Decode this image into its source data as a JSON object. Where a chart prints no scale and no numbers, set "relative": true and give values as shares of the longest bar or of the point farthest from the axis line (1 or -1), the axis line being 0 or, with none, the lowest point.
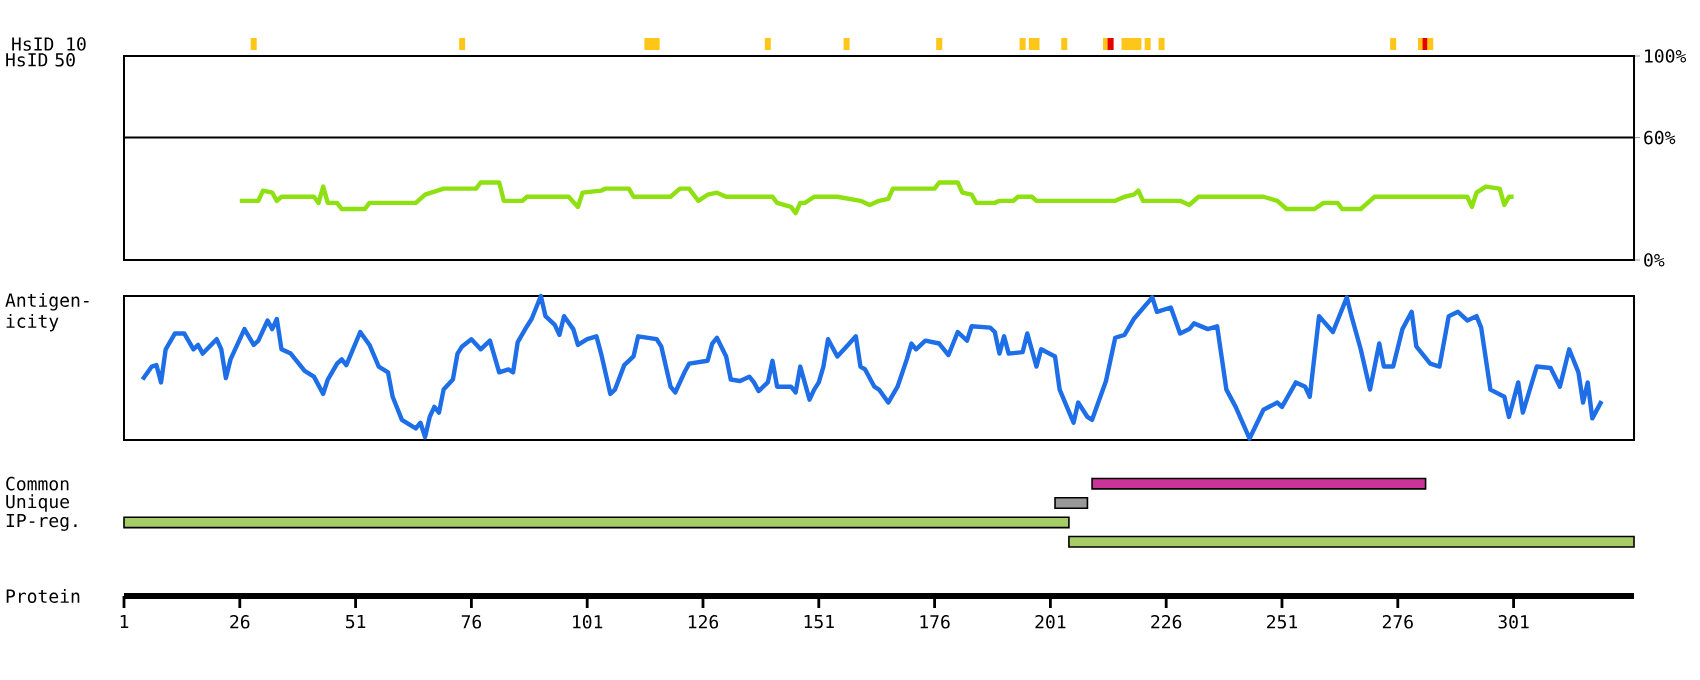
{
  "chart_data": [
    {
      "type": "bar",
      "ylabel": "HsID 10",
      "relative": true,
      "tick_labels": false,
      "xlim": [
        1,
        327
      ],
      "x": [
        29,
        74,
        114,
        115,
        116,
        140,
        157,
        177,
        195,
        197,
        198,
        204,
        213,
        214,
        217,
        218,
        219,
        220,
        222,
        225,
        275,
        281,
        282,
        283
      ],
      "values": [
        1,
        1,
        1,
        1,
        1,
        1,
        1,
        1,
        1,
        1,
        1,
        1,
        1,
        1,
        1,
        1,
        1,
        1,
        1,
        1,
        1,
        1,
        1,
        1
      ],
      "colors": [
        "#ffc61a",
        "#ffc61a",
        "#ffc61a",
        "#ffc61a",
        "#ffc61a",
        "#ffc61a",
        "#ffc61a",
        "#ffc61a",
        "#ffc61a",
        "#ffc61a",
        "#ffc61a",
        "#ffc61a",
        "#ffc61a",
        "#e60000",
        "#ffc61a",
        "#ffc61a",
        "#ffc61a",
        "#ffc61a",
        "#ffc61a",
        "#ffc61a",
        "#ffc61a",
        "#ffc61a",
        "#e60000",
        "#ffc61a"
      ]
    },
    {
      "type": "line",
      "ylabel": "HsID 50",
      "tick_labels": "y",
      "xlim": [
        1,
        327
      ],
      "ylim": [
        0,
        100
      ],
      "yticks": [
        {
          "value": 0,
          "label": "0%"
        },
        {
          "value": 60,
          "label": "60%"
        },
        {
          "value": 100,
          "label": "100%"
        }
      ],
      "ref_lines": [
        {
          "axis": "y",
          "value": 60,
          "color": "#000000"
        }
      ],
      "x": [
        26,
        30,
        31,
        33,
        34,
        35,
        42,
        43,
        44,
        45,
        47,
        48,
        53,
        54,
        64,
        66,
        70,
        77,
        78,
        82,
        83,
        87,
        88,
        97,
        99,
        100,
        104,
        105,
        110,
        111,
        119,
        121,
        123,
        125,
        127,
        129,
        131,
        141,
        142,
        145,
        146,
        147,
        148,
        150,
        155,
        160,
        162,
        164,
        166,
        167,
        176,
        177,
        181,
        182,
        184,
        185,
        189,
        190,
        193,
        194,
        197,
        198,
        215,
        217,
        219,
        220,
        221,
        229,
        231,
        233,
        247,
        250,
        252,
        258,
        260,
        263,
        264,
        268,
        270,
        271,
        291,
        292,
        293,
        295,
        298,
        299,
        300,
        301
      ],
      "series": [
        {
          "color": "#8fe010",
          "values": [
            29,
            29,
            34,
            33,
            29,
            31,
            31,
            28,
            36,
            28,
            28,
            25,
            25,
            28,
            28,
            32,
            35,
            35,
            38,
            38,
            29,
            29,
            31,
            31,
            26,
            33,
            34,
            35,
            35,
            31,
            31,
            35,
            35,
            29,
            32,
            33,
            31,
            31,
            28,
            26,
            23,
            28,
            28,
            31,
            31,
            29,
            27,
            29,
            30,
            35,
            35,
            38,
            38,
            33,
            32,
            28,
            28,
            29,
            29,
            31,
            31,
            29,
            29,
            31,
            32,
            34,
            29,
            29,
            27,
            31,
            31,
            29,
            25,
            25,
            28,
            28,
            25,
            25,
            29,
            31,
            31,
            26,
            33,
            36,
            35,
            27,
            31,
            31
          ]
        }
      ]
    },
    {
      "type": "line",
      "ylabel": "Antigen-icity",
      "relative": true,
      "tick_labels": false,
      "xlim": [
        1,
        327
      ],
      "x": [
        5,
        7,
        8,
        9,
        10,
        12,
        14,
        16,
        17,
        18,
        21,
        22,
        23,
        24,
        27,
        29,
        30,
        32,
        33,
        34,
        35,
        37,
        40,
        42,
        44,
        45,
        47,
        48,
        49,
        52,
        54,
        56,
        58,
        59,
        61,
        63,
        64,
        65,
        66,
        67,
        68,
        69,
        70,
        72,
        73,
        74,
        76,
        78,
        80,
        82,
        84,
        85,
        86,
        88,
        89,
        91,
        92,
        94,
        95,
        96,
        98,
        99,
        101,
        103,
        104,
        106,
        107,
        109,
        111,
        112,
        116,
        117,
        119,
        120,
        122,
        123,
        127,
        128,
        129,
        131,
        132,
        134,
        136,
        137,
        138,
        140,
        141,
        142,
        145,
        146,
        147,
        149,
        150,
        151,
        152,
        153,
        155,
        157,
        159,
        160,
        161,
        163,
        164,
        166,
        168,
        170,
        171,
        172,
        174,
        177,
        179,
        181,
        183,
        184,
        188,
        189,
        190,
        191,
        192,
        195,
        196,
        198,
        199,
        202,
        203,
        206,
        207,
        209,
        210,
        213,
        215,
        217,
        219,
        223,
        224,
        227,
        229,
        231,
        232,
        235,
        237,
        239,
        241,
        244,
        247,
        250,
        251,
        254,
        256,
        257,
        259,
        262,
        265,
        266,
        268,
        270,
        272,
        273,
        275,
        277,
        279,
        280,
        283,
        285,
        287,
        289,
        291,
        293,
        294,
        296,
        299,
        300,
        302,
        303,
        306,
        309,
        311,
        313,
        315,
        316,
        317,
        318,
        320
      ],
      "series": [
        {
          "color": "#1e6ee8",
          "values": [
            0.42,
            0.51,
            0.52,
            0.4,
            0.63,
            0.74,
            0.74,
            0.63,
            0.66,
            0.6,
            0.7,
            0.63,
            0.43,
            0.56,
            0.77,
            0.66,
            0.69,
            0.83,
            0.77,
            0.84,
            0.63,
            0.6,
            0.48,
            0.44,
            0.32,
            0.42,
            0.53,
            0.56,
            0.52,
            0.75,
            0.66,
            0.51,
            0.47,
            0.3,
            0.14,
            0.1,
            0.08,
            0.12,
            0.02,
            0.16,
            0.23,
            0.19,
            0.35,
            0.42,
            0.6,
            0.65,
            0.7,
            0.63,
            0.69,
            0.47,
            0.49,
            0.47,
            0.68,
            0.79,
            0.84,
            1.0,
            0.86,
            0.8,
            0.73,
            0.86,
            0.77,
            0.66,
            0.7,
            0.72,
            0.6,
            0.32,
            0.35,
            0.52,
            0.58,
            0.72,
            0.7,
            0.65,
            0.37,
            0.33,
            0.47,
            0.53,
            0.55,
            0.67,
            0.71,
            0.58,
            0.42,
            0.41,
            0.44,
            0.4,
            0.34,
            0.4,
            0.55,
            0.37,
            0.37,
            0.33,
            0.51,
            0.28,
            0.35,
            0.4,
            0.51,
            0.7,
            0.58,
            0.65,
            0.72,
            0.51,
            0.49,
            0.37,
            0.35,
            0.26,
            0.37,
            0.56,
            0.67,
            0.63,
            0.69,
            0.67,
            0.59,
            0.75,
            0.69,
            0.79,
            0.78,
            0.75,
            0.6,
            0.72,
            0.6,
            0.61,
            0.74,
            0.51,
            0.63,
            0.58,
            0.35,
            0.12,
            0.26,
            0.16,
            0.14,
            0.41,
            0.71,
            0.73,
            0.84,
            0.99,
            0.89,
            0.92,
            0.74,
            0.77,
            0.81,
            0.77,
            0.79,
            0.35,
            0.23,
            0.01,
            0.21,
            0.26,
            0.23,
            0.4,
            0.37,
            0.3,
            0.86,
            0.75,
            0.99,
            0.86,
            0.63,
            0.35,
            0.67,
            0.51,
            0.51,
            0.77,
            0.89,
            0.65,
            0.53,
            0.51,
            0.86,
            0.89,
            0.83,
            0.86,
            0.78,
            0.35,
            0.3,
            0.16,
            0.4,
            0.19,
            0.51,
            0.5,
            0.37,
            0.63,
            0.47,
            0.26,
            0.4,
            0.15,
            0.27
          ]
        }
      ]
    },
    {
      "type": "bar",
      "orientation": "horizontal",
      "xlabel": "Protein",
      "xlim": [
        1,
        327
      ],
      "xticks": [
        1,
        26,
        51,
        76,
        101,
        126,
        151,
        176,
        201,
        226,
        251,
        276,
        301
      ],
      "categories": [
        "Common",
        "Unique",
        "IP-reg.",
        null
      ],
      "base": [
        210,
        202,
        1,
        205
      ],
      "values": [
        72,
        7,
        204,
        122
      ],
      "colors": [
        "#cc3399",
        "#999999",
        "#a6cc66",
        "#a6cc66"
      ]
    }
  ]
}
